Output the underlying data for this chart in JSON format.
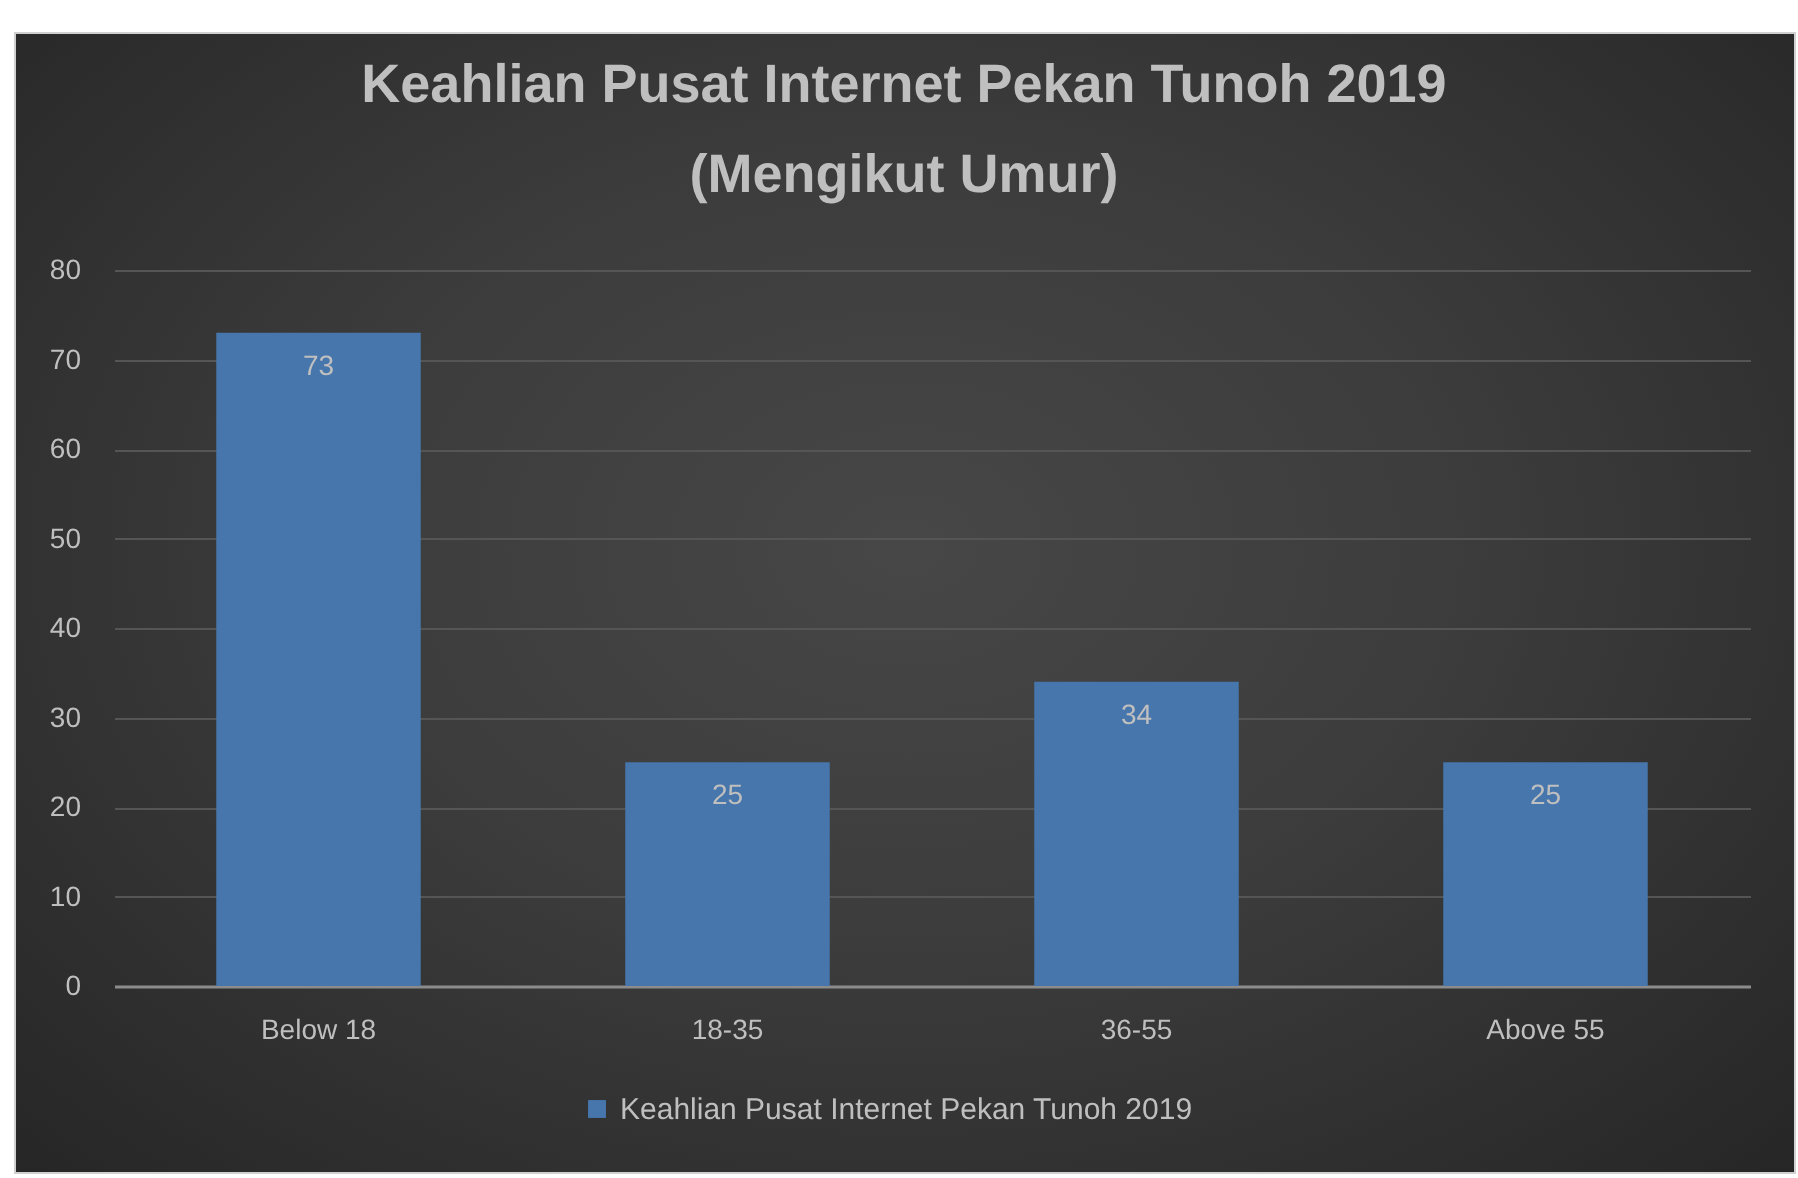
{
  "chart_data": {
    "type": "bar",
    "title": "Keahlian Pusat Internet Pekan Tunoh 2019\n(Mengikut Umur)",
    "categories": [
      "Below 18",
      "18-35",
      "36-55",
      "Above 55"
    ],
    "series": [
      {
        "name": "Keahlian Pusat Internet Pekan Tunoh 2019",
        "color": "#4776ac",
        "values": [
          73,
          25,
          34,
          25
        ]
      }
    ],
    "ylim": [
      0,
      80
    ],
    "yticks": [
      0,
      10,
      20,
      30,
      40,
      50,
      60,
      70,
      80
    ],
    "grid": "y",
    "legend": "bottom",
    "data_labels": true
  }
}
